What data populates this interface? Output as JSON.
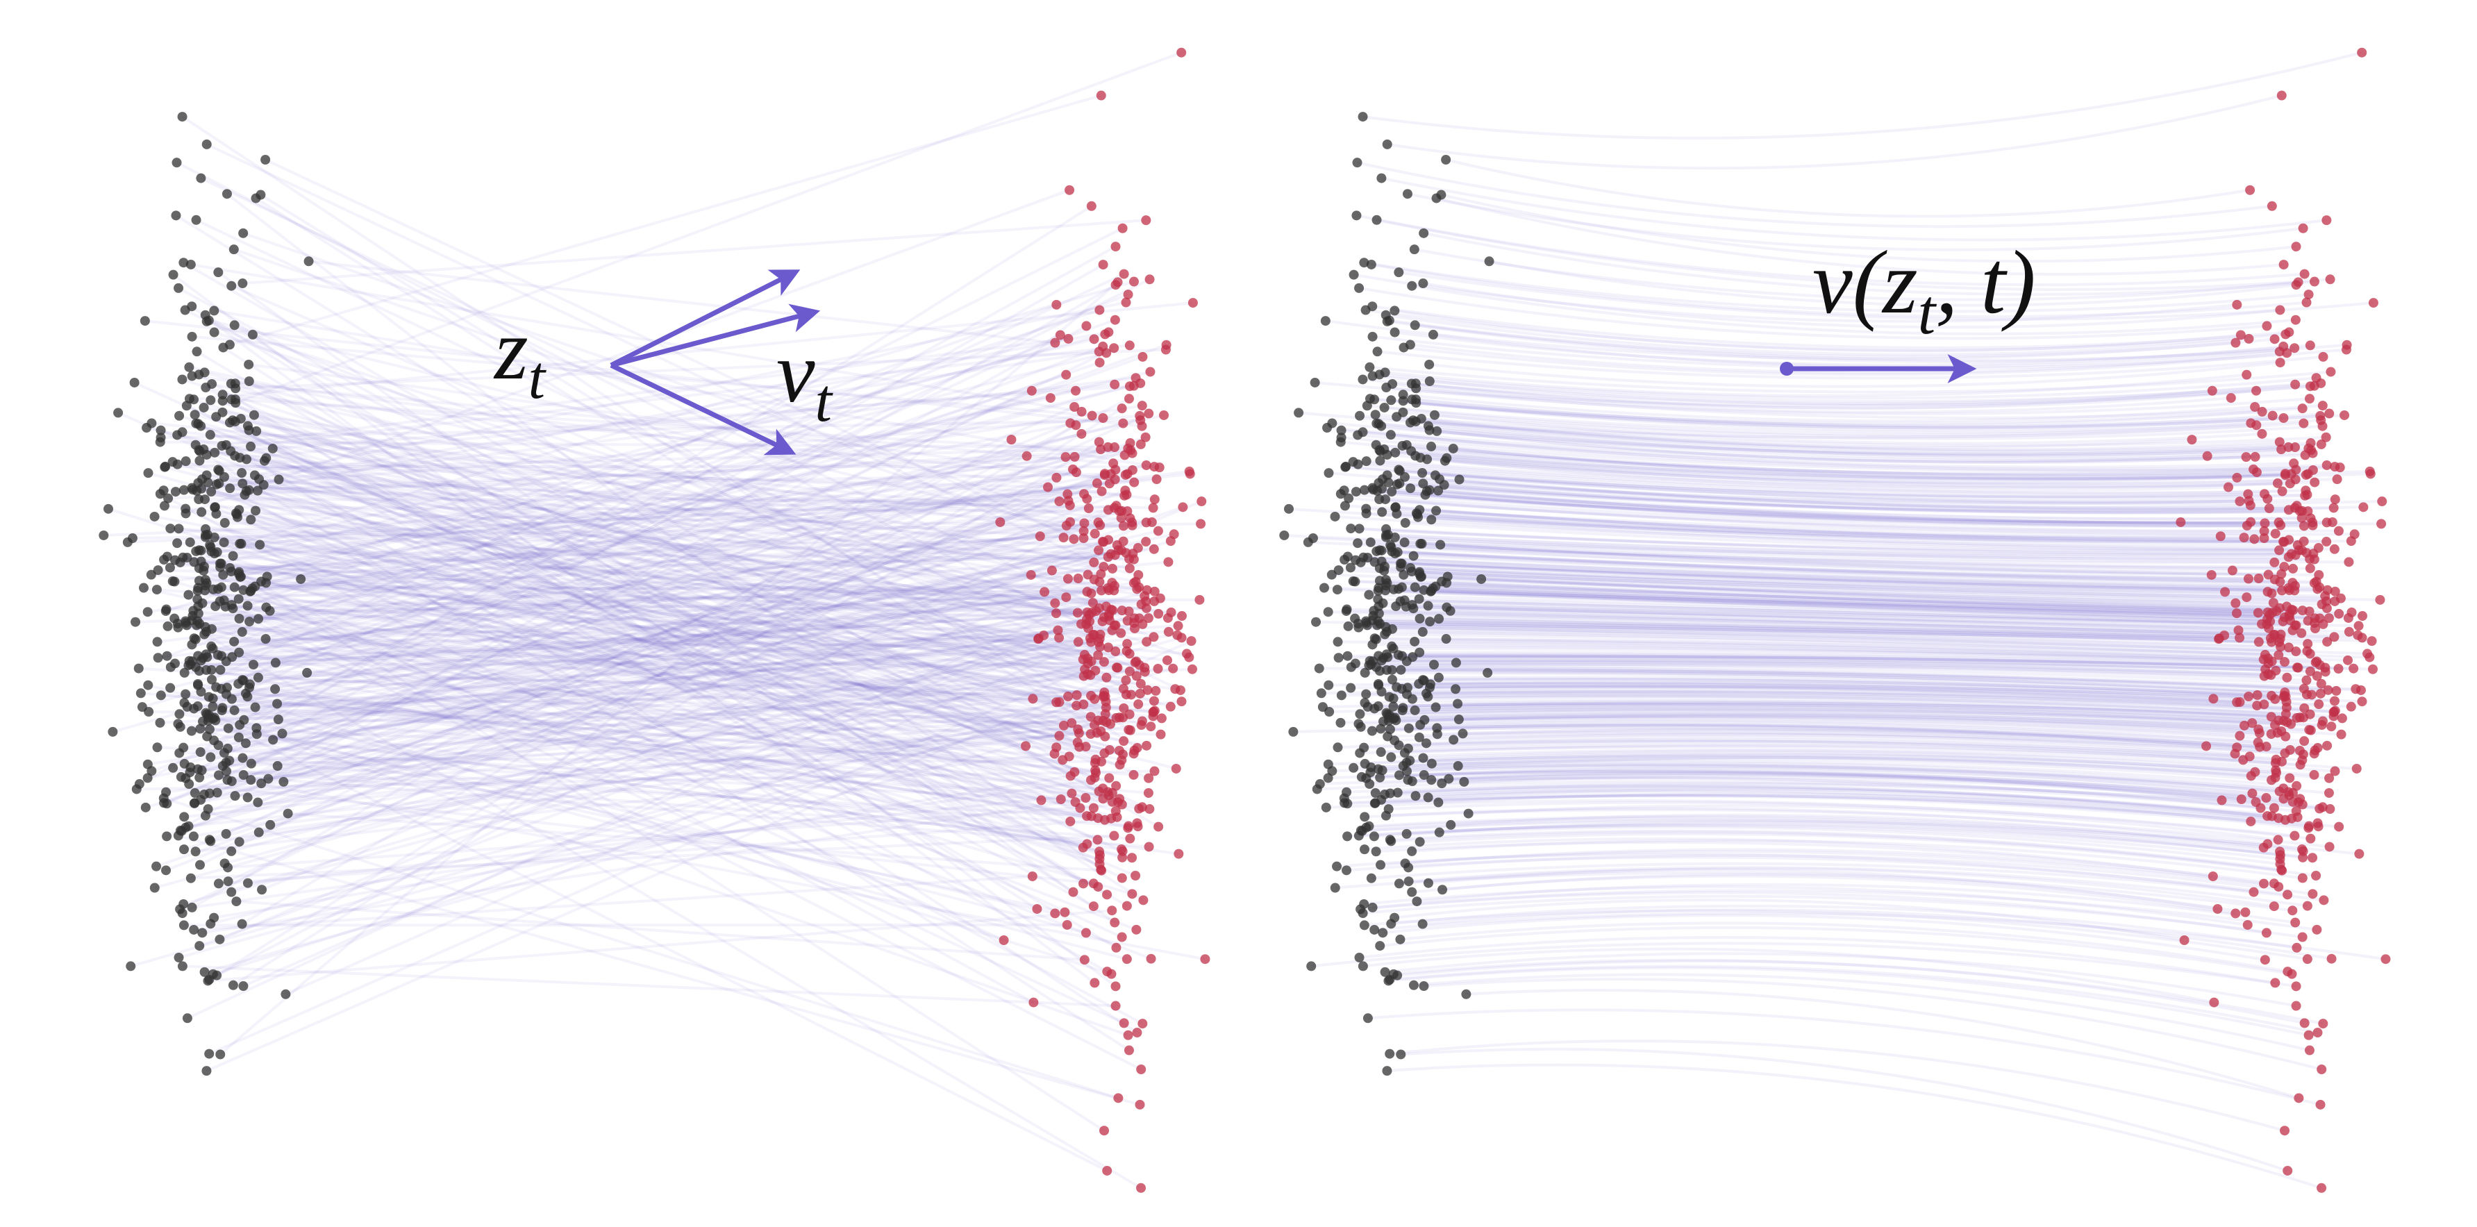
{
  "left_panel": {
    "point_label": {
      "symbol": "z",
      "subscript": "t"
    },
    "vector_label": {
      "symbol": "v",
      "subscript": "t"
    }
  },
  "right_panel": {
    "field_label": {
      "before": "v(z",
      "subscript": "t",
      "after": ", t)"
    }
  }
}
